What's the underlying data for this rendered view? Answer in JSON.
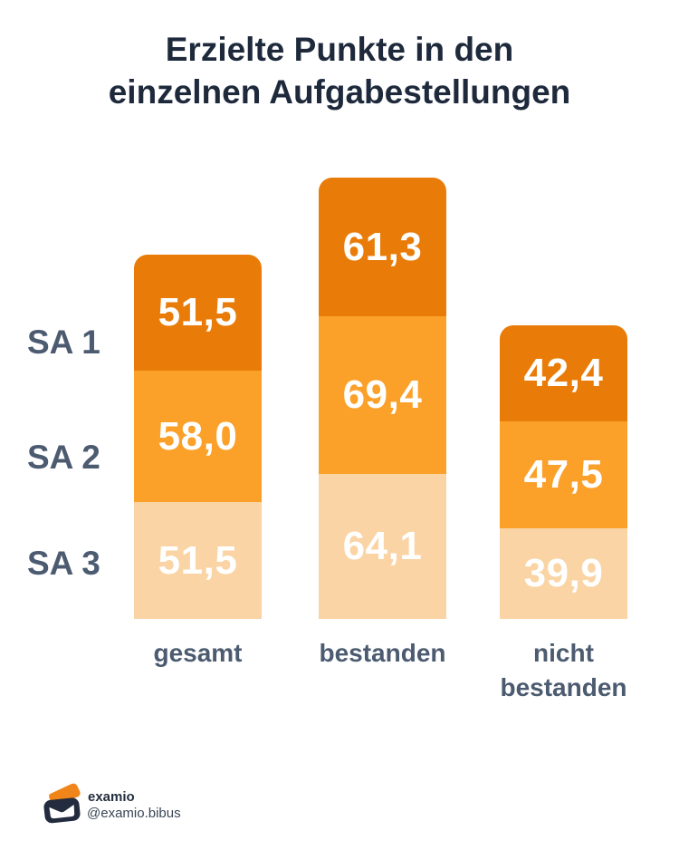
{
  "title": {
    "text": "Erzielte Punkte in den\neinzelnen Aufgabestellungen"
  },
  "chart_data": {
    "type": "bar",
    "stacked": true,
    "orientation": "vertical",
    "title": "Erzielte Punkte in den einzelnen Aufgabestellungen",
    "categories": [
      "gesamt",
      "bestanden",
      "nicht bestanden"
    ],
    "category_display": [
      "gesamt",
      "bestanden",
      "nicht\nbestanden"
    ],
    "series": [
      {
        "name": "SA 1",
        "values": [
          51.5,
          61.3,
          42.4
        ],
        "color": "#E97C08"
      },
      {
        "name": "SA 2",
        "values": [
          58.0,
          69.4,
          47.5
        ],
        "color": "#FBA12A"
      },
      {
        "name": "SA 3",
        "values": [
          51.5,
          64.1,
          39.9
        ],
        "color": "#FAD4A4"
      }
    ],
    "value_label_decimal": "comma",
    "grid": false,
    "axes_visible": false,
    "legend_position": "row-labels-left"
  },
  "row_labels": [
    "SA 1",
    "SA 2",
    "SA 3"
  ],
  "footer": {
    "brand": "examio",
    "handle": "@examio.bibus"
  },
  "colors": {
    "background": "#FFFFFF",
    "title_text": "#1E2A3C",
    "label_text": "#4C5B70",
    "value_text": "#FFFFFF",
    "segment_sa1": "#E97C08",
    "segment_sa2": "#FBA12A",
    "segment_sa3": "#FAD4A4",
    "logo_navy": "#232B3E",
    "logo_orange": "#F0861A"
  }
}
